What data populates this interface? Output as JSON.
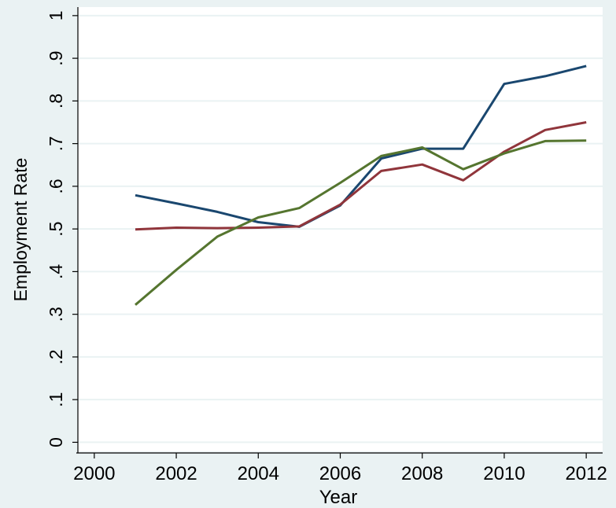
{
  "chart_data": {
    "type": "line",
    "title": "",
    "xlabel": "Year",
    "ylabel": "Employment Rate",
    "xlim": [
      1999.6,
      2012.4
    ],
    "ylim": [
      -0.025,
      1.02
    ],
    "xticks": [
      2000,
      2002,
      2004,
      2006,
      2008,
      2010,
      2012
    ],
    "xtick_labels": [
      "2000",
      "2002",
      "2004",
      "2006",
      "2008",
      "2010",
      "2012"
    ],
    "yticks": [
      0,
      0.1,
      0.2,
      0.3,
      0.4,
      0.5,
      0.6,
      0.7,
      0.8,
      0.9,
      1
    ],
    "ytick_labels": [
      "0",
      ".1",
      ".2",
      ".3",
      ".4",
      ".5",
      ".6",
      ".7",
      ".8",
      ".9",
      "1"
    ],
    "grid": true,
    "legend": "none",
    "x": [
      2001,
      2002,
      2003,
      2004,
      2005,
      2006,
      2007,
      2008,
      2009,
      2010,
      2011,
      2012
    ],
    "series": [
      {
        "color": "#1a476f",
        "values": [
          0.579,
          0.56,
          0.54,
          0.516,
          0.505,
          0.555,
          0.665,
          0.688,
          0.688,
          0.84,
          0.858,
          0.882
        ]
      },
      {
        "color": "#90353b",
        "values": [
          0.499,
          0.503,
          0.502,
          0.503,
          0.506,
          0.557,
          0.636,
          0.651,
          0.614,
          0.681,
          0.732,
          0.75
        ]
      },
      {
        "color": "#55752f",
        "values": [
          0.322,
          0.404,
          0.482,
          0.527,
          0.549,
          0.608,
          0.671,
          0.691,
          0.64,
          0.677,
          0.706,
          0.707
        ]
      }
    ]
  }
}
